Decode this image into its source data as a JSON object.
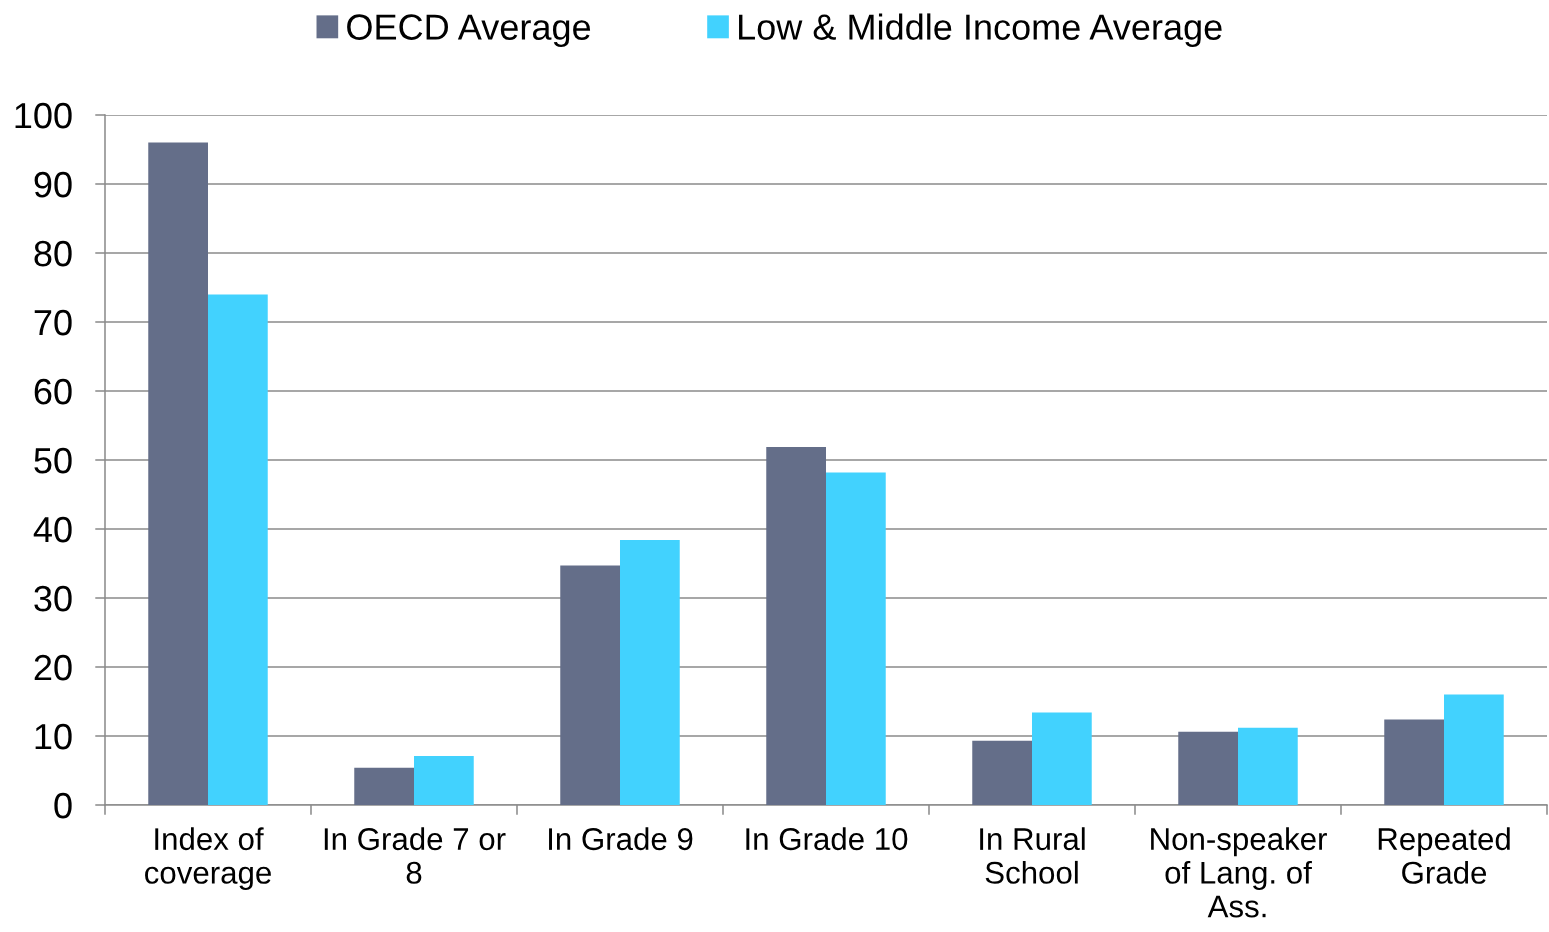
{
  "chart_data": {
    "type": "bar",
    "categories": [
      "Index of\ncoverage",
      "In Grade 7 or\n8",
      "In Grade 9",
      "In Grade 10",
      "In Rural\nSchool",
      "Non-speaker\nof Lang. of\nAss.",
      "Repeated\nGrade"
    ],
    "series": [
      {
        "name": "OECD Average",
        "color": "#646e89",
        "values": [
          96,
          5.4,
          34.7,
          51.9,
          9.3,
          10.6,
          12.4
        ]
      },
      {
        "name": "Low & Middle Income Average",
        "color": "#42d2fe",
        "values": [
          74,
          7.1,
          38.4,
          48.2,
          13.4,
          11.2,
          16.0
        ]
      }
    ],
    "ylim": [
      0,
      100
    ],
    "yticks": [
      0,
      10,
      20,
      30,
      40,
      50,
      60,
      70,
      80,
      90,
      100
    ],
    "grid": "y",
    "legend": "top"
  }
}
